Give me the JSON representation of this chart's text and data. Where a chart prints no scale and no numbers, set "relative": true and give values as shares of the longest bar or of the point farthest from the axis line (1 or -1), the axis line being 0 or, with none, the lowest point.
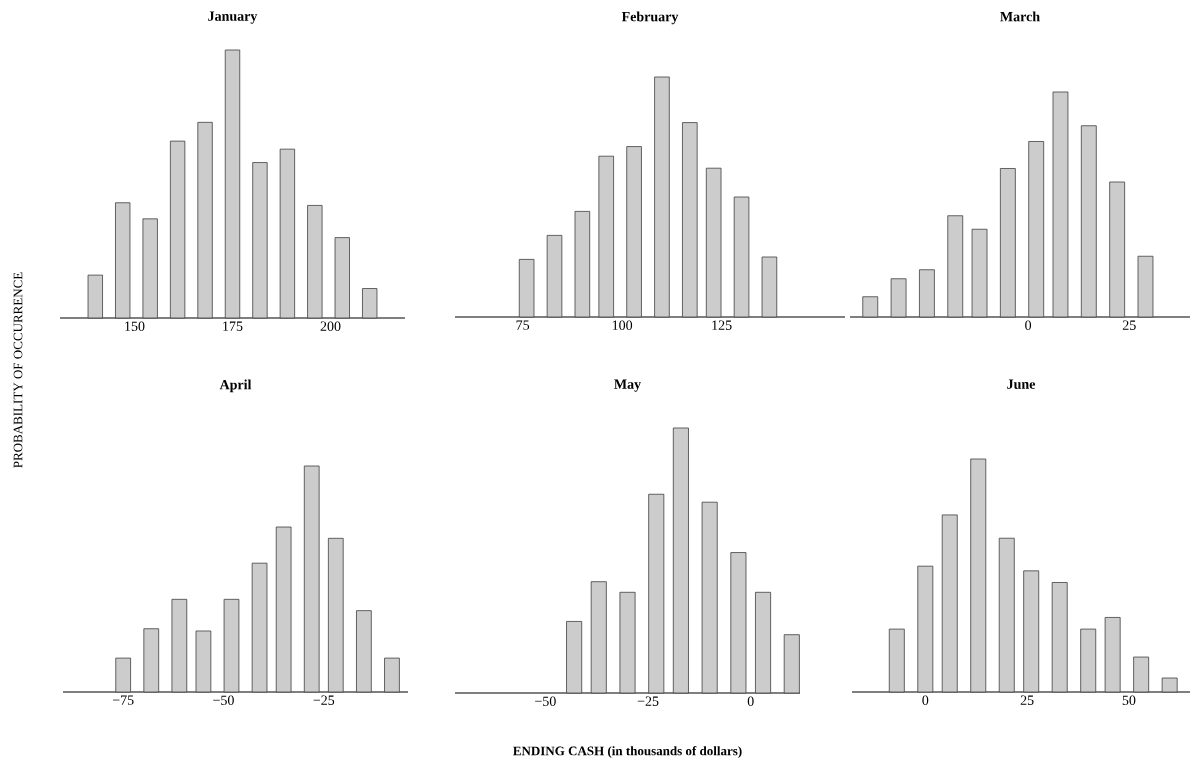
{
  "chart_data": [
    {
      "type": "bar",
      "title": "January",
      "ylabel": "PROBABILITY OF OCCURRENCE",
      "relative": true,
      "color": "#cccccc",
      "x": [
        140,
        147,
        154,
        161,
        168,
        175,
        182,
        189,
        196,
        203,
        210
      ],
      "values": [
        0.16,
        0.43,
        0.37,
        0.66,
        0.73,
        1,
        0.58,
        0.63,
        0.42,
        0.3,
        0.11
      ],
      "xlim": [
        131,
        219
      ],
      "xticks": [
        150,
        175,
        200
      ]
    },
    {
      "type": "bar",
      "title": "February",
      "relative": true,
      "color": "#cccccc",
      "x": [
        76,
        83,
        90,
        96,
        103,
        110,
        117,
        123,
        130,
        137
      ],
      "values": [
        0.24,
        0.34,
        0.44,
        0.67,
        0.71,
        1,
        0.81,
        0.62,
        0.5,
        0.25
      ],
      "xlim": [
        58,
        156
      ],
      "xticks": [
        75,
        100,
        125
      ]
    },
    {
      "type": "bar",
      "title": "March",
      "relative": true,
      "color": "#cccccc",
      "x": [
        -39,
        -32,
        -25,
        -18,
        -12,
        -5,
        2,
        8,
        15,
        22,
        29
      ],
      "values": [
        0.09,
        0.17,
        0.21,
        0.45,
        0.39,
        0.66,
        0.78,
        1,
        0.85,
        0.6,
        0.27
      ],
      "xlim": [
        -44,
        40
      ],
      "xticks": [
        0,
        25
      ]
    },
    {
      "type": "bar",
      "title": "April",
      "relative": true,
      "color": "#cccccc",
      "x": [
        -75,
        -68,
        -61,
        -55,
        -48,
        -41,
        -35,
        -28,
        -22,
        -15,
        -8
      ],
      "values": [
        0.15,
        0.28,
        0.41,
        0.27,
        0.41,
        0.57,
        0.73,
        1,
        0.68,
        0.36,
        0.15
      ],
      "xlim": [
        -90,
        -4
      ],
      "xticks": [
        {
          "value": -75,
          "label": "−75"
        },
        {
          "value": -50,
          "label": "−50"
        },
        {
          "value": -25,
          "label": "−25"
        }
      ]
    },
    {
      "type": "bar",
      "title": "May",
      "xlabel": "ENDING CASH (in thousands of dollars)",
      "relative": true,
      "color": "#cccccc",
      "x": [
        -43,
        -37,
        -30,
        -23,
        -17,
        -10,
        -3,
        3,
        10
      ],
      "values": [
        0.27,
        0.42,
        0.38,
        0.75,
        1,
        0.72,
        0.53,
        0.38,
        0.22
      ],
      "xlim": [
        -72,
        12
      ],
      "xticks": [
        {
          "value": -50,
          "label": "−50"
        },
        {
          "value": -25,
          "label": "−25"
        },
        0
      ]
    },
    {
      "type": "bar",
      "title": "June",
      "relative": true,
      "color": "#cccccc",
      "x": [
        -7,
        0,
        6,
        13,
        20,
        26,
        33,
        40,
        46,
        53,
        60
      ],
      "values": [
        0.27,
        0.54,
        0.76,
        1,
        0.66,
        0.52,
        0.47,
        0.27,
        0.32,
        0.15,
        0.06
      ],
      "xlim": [
        -18,
        65
      ],
      "xticks": [
        0,
        25,
        50
      ]
    }
  ]
}
